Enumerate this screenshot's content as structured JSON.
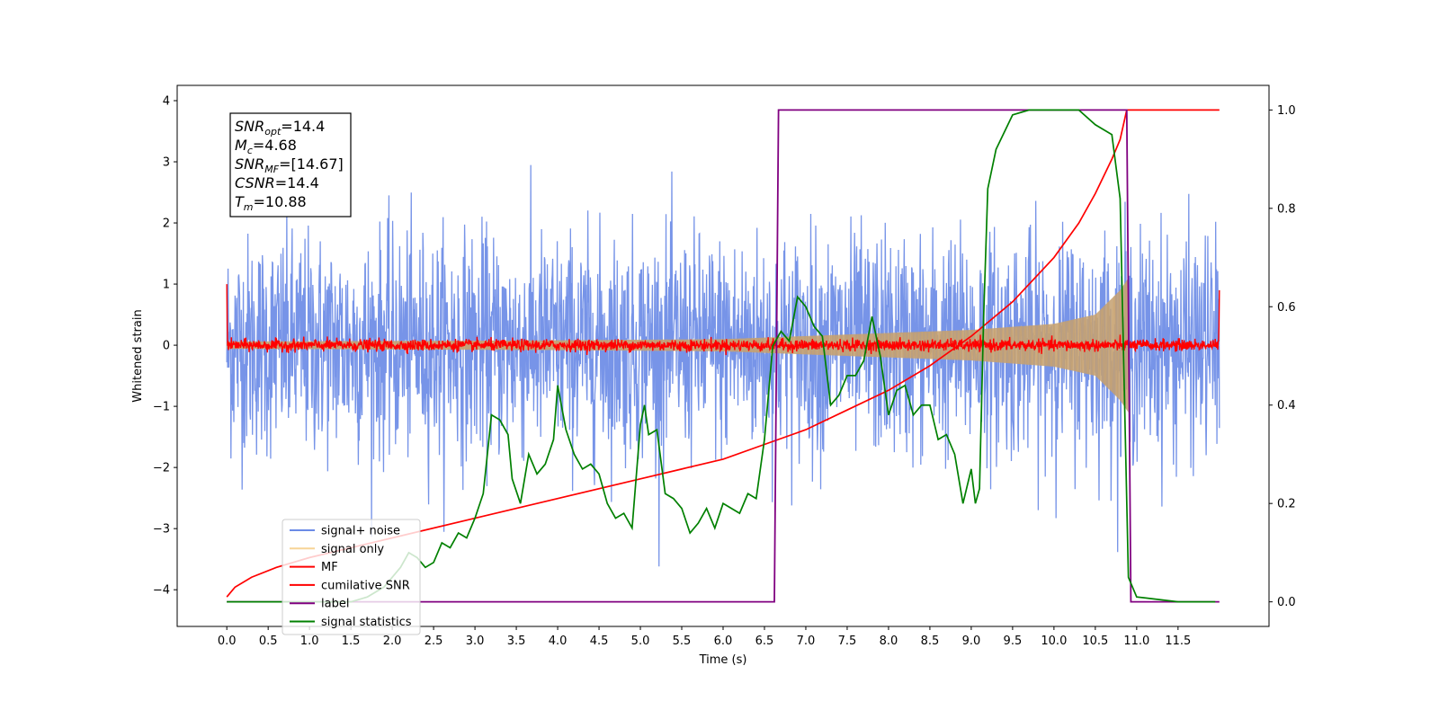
{
  "chart_data": {
    "type": "line",
    "xlabel": "Time (s)",
    "ylabel": "Whitened strain",
    "xlim": [
      -0.6,
      12.6
    ],
    "ylim": [
      -4.6,
      4.25
    ],
    "ylim_right": [
      -0.05,
      1.05
    ],
    "x_ticks": [
      "0.0",
      "0.5",
      "1.0",
      "1.5",
      "2.0",
      "2.5",
      "3.0",
      "3.5",
      "4.0",
      "4.5",
      "5.0",
      "5.5",
      "6.0",
      "6.5",
      "7.0",
      "7.5",
      "8.0",
      "8.5",
      "9.0",
      "9.5",
      "10.0",
      "10.5",
      "11.0",
      "11.5"
    ],
    "y_ticks_left": [
      "−4",
      "−3",
      "−2",
      "−1",
      "0",
      "1",
      "2",
      "3",
      "4"
    ],
    "y_ticks_right": [
      "0.0",
      "0.2",
      "0.4",
      "0.6",
      "0.8",
      "1.0"
    ],
    "grid": false,
    "legend_position": "bottom-left",
    "annotation": {
      "lines": [
        {
          "base": "SNR",
          "sub": "opt",
          "value": "=14.4"
        },
        {
          "base": "M",
          "sub": "c",
          "value": "=4.68"
        },
        {
          "base": "SNR",
          "sub": "MF",
          "value": "=[14.67]"
        },
        {
          "base": "CSNR",
          "sub": "",
          "value": "=14.4"
        },
        {
          "base": "T",
          "sub": "m",
          "value": "=10.88"
        }
      ]
    },
    "series": [
      {
        "name": "signal+ noise",
        "color": "#6b8be6",
        "axis": "left",
        "kind": "noise",
        "x_range": [
          0.0,
          12.0
        ],
        "amplitude_typical": 1.5,
        "amplitude_peak": 3.9
      },
      {
        "name": "signal only",
        "color": "#f5c26b",
        "axis": "left",
        "kind": "chirp-envelope",
        "x_range": [
          0.0,
          12.0
        ],
        "envelope": [
          [
            0.0,
            0.06
          ],
          [
            4.0,
            0.08
          ],
          [
            6.0,
            0.1
          ],
          [
            7.0,
            0.15
          ],
          [
            8.0,
            0.2
          ],
          [
            9.0,
            0.25
          ],
          [
            10.0,
            0.35
          ],
          [
            10.5,
            0.5
          ],
          [
            10.8,
            0.9
          ],
          [
            10.9,
            1.1
          ]
        ]
      },
      {
        "name": "MF",
        "color": "#ff0000",
        "axis": "left",
        "kind": "small-noise",
        "x_range": [
          0.0,
          12.0
        ],
        "amplitude_typical": 0.08,
        "start_value": 1.0,
        "end_value": 0.9
      },
      {
        "name": "cumilative SNR",
        "color": "#ff0000",
        "axis": "right",
        "kind": "line",
        "points": [
          [
            0.0,
            0.01
          ],
          [
            0.1,
            0.03
          ],
          [
            0.3,
            0.05
          ],
          [
            0.6,
            0.07
          ],
          [
            1.0,
            0.09
          ],
          [
            1.5,
            0.11
          ],
          [
            2.0,
            0.13
          ],
          [
            3.0,
            0.17
          ],
          [
            4.0,
            0.21
          ],
          [
            5.0,
            0.25
          ],
          [
            5.5,
            0.27
          ],
          [
            6.0,
            0.29
          ],
          [
            6.5,
            0.32
          ],
          [
            7.0,
            0.35
          ],
          [
            7.5,
            0.39
          ],
          [
            8.0,
            0.43
          ],
          [
            8.5,
            0.48
          ],
          [
            9.0,
            0.54
          ],
          [
            9.5,
            0.61
          ],
          [
            10.0,
            0.7
          ],
          [
            10.3,
            0.77
          ],
          [
            10.5,
            0.83
          ],
          [
            10.7,
            0.9
          ],
          [
            10.8,
            0.94
          ],
          [
            10.88,
            1.0
          ],
          [
            12.0,
            1.0
          ]
        ]
      },
      {
        "name": "label",
        "color": "#800080",
        "axis": "right",
        "kind": "step",
        "points": [
          [
            0.0,
            0.0
          ],
          [
            6.62,
            0.0
          ],
          [
            6.67,
            1.0
          ],
          [
            10.88,
            1.0
          ],
          [
            10.93,
            0.0
          ],
          [
            12.0,
            0.0
          ]
        ]
      },
      {
        "name": "signal statistics",
        "color": "#008000",
        "axis": "right",
        "kind": "line",
        "points": [
          [
            0.0,
            0.0
          ],
          [
            0.5,
            0.0
          ],
          [
            1.0,
            0.0
          ],
          [
            1.5,
            0.0
          ],
          [
            1.7,
            0.01
          ],
          [
            1.9,
            0.03
          ],
          [
            2.0,
            0.05
          ],
          [
            2.1,
            0.07
          ],
          [
            2.2,
            0.1
          ],
          [
            2.3,
            0.09
          ],
          [
            2.4,
            0.07
          ],
          [
            2.5,
            0.08
          ],
          [
            2.6,
            0.12
          ],
          [
            2.7,
            0.11
          ],
          [
            2.8,
            0.14
          ],
          [
            2.9,
            0.13
          ],
          [
            3.0,
            0.17
          ],
          [
            3.1,
            0.22
          ],
          [
            3.2,
            0.38
          ],
          [
            3.3,
            0.37
          ],
          [
            3.4,
            0.34
          ],
          [
            3.45,
            0.25
          ],
          [
            3.55,
            0.2
          ],
          [
            3.65,
            0.3
          ],
          [
            3.75,
            0.26
          ],
          [
            3.85,
            0.28
          ],
          [
            3.95,
            0.33
          ],
          [
            4.0,
            0.44
          ],
          [
            4.1,
            0.35
          ],
          [
            4.2,
            0.3
          ],
          [
            4.3,
            0.27
          ],
          [
            4.4,
            0.28
          ],
          [
            4.5,
            0.26
          ],
          [
            4.6,
            0.2
          ],
          [
            4.7,
            0.17
          ],
          [
            4.8,
            0.18
          ],
          [
            4.9,
            0.15
          ],
          [
            5.0,
            0.36
          ],
          [
            5.05,
            0.4
          ],
          [
            5.1,
            0.34
          ],
          [
            5.2,
            0.35
          ],
          [
            5.3,
            0.22
          ],
          [
            5.4,
            0.21
          ],
          [
            5.5,
            0.19
          ],
          [
            5.6,
            0.14
          ],
          [
            5.7,
            0.16
          ],
          [
            5.8,
            0.19
          ],
          [
            5.9,
            0.15
          ],
          [
            6.0,
            0.2
          ],
          [
            6.1,
            0.19
          ],
          [
            6.2,
            0.18
          ],
          [
            6.3,
            0.22
          ],
          [
            6.4,
            0.21
          ],
          [
            6.5,
            0.33
          ],
          [
            6.6,
            0.52
          ],
          [
            6.7,
            0.55
          ],
          [
            6.8,
            0.53
          ],
          [
            6.9,
            0.62
          ],
          [
            7.0,
            0.6
          ],
          [
            7.1,
            0.56
          ],
          [
            7.2,
            0.54
          ],
          [
            7.3,
            0.4
          ],
          [
            7.4,
            0.42
          ],
          [
            7.5,
            0.46
          ],
          [
            7.6,
            0.46
          ],
          [
            7.7,
            0.49
          ],
          [
            7.8,
            0.58
          ],
          [
            7.9,
            0.5
          ],
          [
            8.0,
            0.38
          ],
          [
            8.1,
            0.43
          ],
          [
            8.2,
            0.44
          ],
          [
            8.3,
            0.38
          ],
          [
            8.4,
            0.4
          ],
          [
            8.5,
            0.4
          ],
          [
            8.6,
            0.33
          ],
          [
            8.7,
            0.34
          ],
          [
            8.8,
            0.3
          ],
          [
            8.9,
            0.2
          ],
          [
            9.0,
            0.27
          ],
          [
            9.05,
            0.2
          ],
          [
            9.1,
            0.23
          ],
          [
            9.15,
            0.58
          ],
          [
            9.2,
            0.84
          ],
          [
            9.3,
            0.92
          ],
          [
            9.5,
            0.99
          ],
          [
            9.7,
            1.0
          ],
          [
            10.0,
            1.0
          ],
          [
            10.3,
            1.0
          ],
          [
            10.5,
            0.97
          ],
          [
            10.6,
            0.96
          ],
          [
            10.7,
            0.95
          ],
          [
            10.8,
            0.82
          ],
          [
            10.9,
            0.05
          ],
          [
            11.0,
            0.01
          ],
          [
            11.5,
            0.0
          ],
          [
            11.95,
            0.0
          ]
        ]
      }
    ]
  }
}
